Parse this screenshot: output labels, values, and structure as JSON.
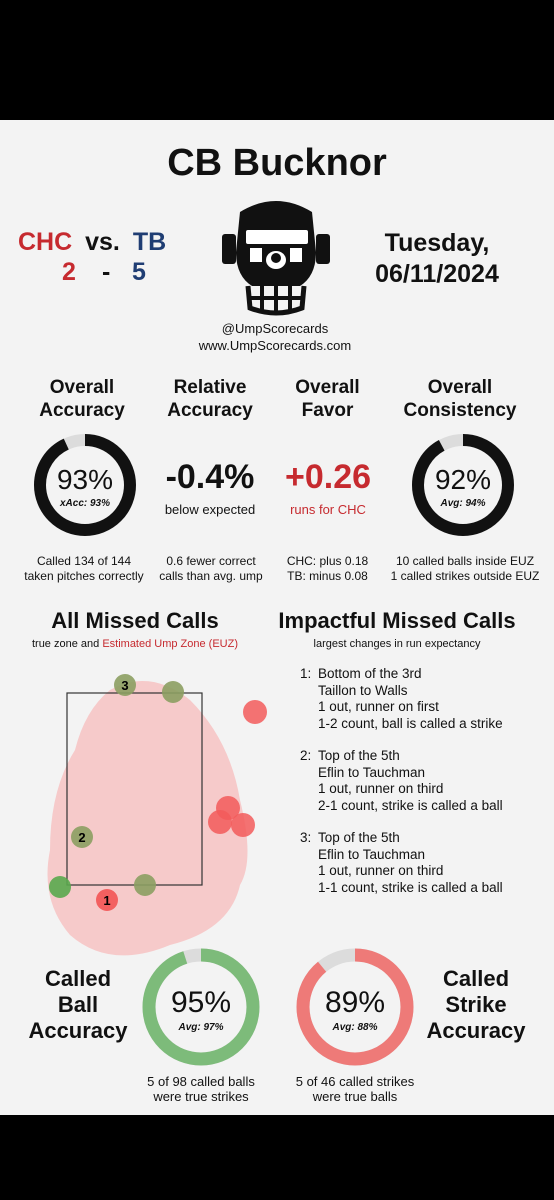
{
  "title": "CB Bucknor",
  "away": {
    "abbr": "CHC",
    "score": "2",
    "color": "#c62a2f"
  },
  "vs": "vs.",
  "dash": "-",
  "home": {
    "abbr": "TB",
    "score": "5",
    "color": "#1f3d73"
  },
  "date": {
    "line1": "Tuesday,",
    "line2": "06/11/2024"
  },
  "handle": {
    "twitter": "@UmpScorecards",
    "site": "www.UmpScorecards.com"
  },
  "stats": {
    "overall_accuracy": {
      "label1": "Overall",
      "label2": "Accuracy",
      "value": "93%",
      "sub": "xAcc: 93%",
      "pct": 0.93,
      "note1": "Called 134 of 144",
      "note2": "taken pitches correctly"
    },
    "relative_accuracy": {
      "label1": "Relative",
      "label2": "Accuracy",
      "value": "-0.4%",
      "sub": "below expected",
      "note1": "0.6 fewer correct",
      "note2": "calls than avg. ump"
    },
    "overall_favor": {
      "label1": "Overall",
      "label2": "Favor",
      "value": "+0.26",
      "sub": "runs for CHC",
      "note1": "CHC: plus 0.18",
      "note2": "TB: minus 0.08"
    },
    "overall_consistency": {
      "label1": "Overall",
      "label2": "Consistency",
      "value": "92%",
      "sub": "Avg: 94%",
      "pct": 0.92,
      "note1": "10 called balls inside EUZ",
      "note2": "1 called strikes outside EUZ"
    }
  },
  "missed": {
    "title": "All Missed Calls",
    "legend_a": "true zone and ",
    "legend_b": "Estimated Ump Zone (EUZ)",
    "markers": [
      {
        "label": "3"
      },
      {
        "label": "2"
      },
      {
        "label": "1"
      }
    ]
  },
  "impactful": {
    "title": "Impactful Missed Calls",
    "subtitle": "largest changes in run expectancy",
    "items": [
      {
        "num": "1:",
        "l1": "Bottom of the 3rd",
        "l2": "Taillon to Walls",
        "l3": "1 out, runner on first",
        "l4": "1-2 count, ball is called a strike"
      },
      {
        "num": "2:",
        "l1": "Top of the 5th",
        "l2": "Eflin to Tauchman",
        "l3": "1 out, runner on third",
        "l4": "2-1 count, strike is called a ball"
      },
      {
        "num": "3:",
        "l1": "Top of the 5th",
        "l2": "Eflin to Tauchman",
        "l3": "1 out, runner on third",
        "l4": "1-1 count, strike is called a ball"
      }
    ]
  },
  "ball_acc": {
    "l1": "Called",
    "l2": "Ball",
    "l3": "Accuracy",
    "value": "95%",
    "sub": "Avg: 97%",
    "pct": 0.95,
    "color": "#7dbb7a",
    "note1": "5 of 98 called balls",
    "note2": "were true strikes"
  },
  "strike_acc": {
    "l1": "Called",
    "l2": "Strike",
    "l3": "Accuracy",
    "value": "89%",
    "sub": "Avg: 88%",
    "pct": 0.89,
    "color": "#ee7a78",
    "note1": "5 of 46 called strikes",
    "note2": "were true balls"
  }
}
